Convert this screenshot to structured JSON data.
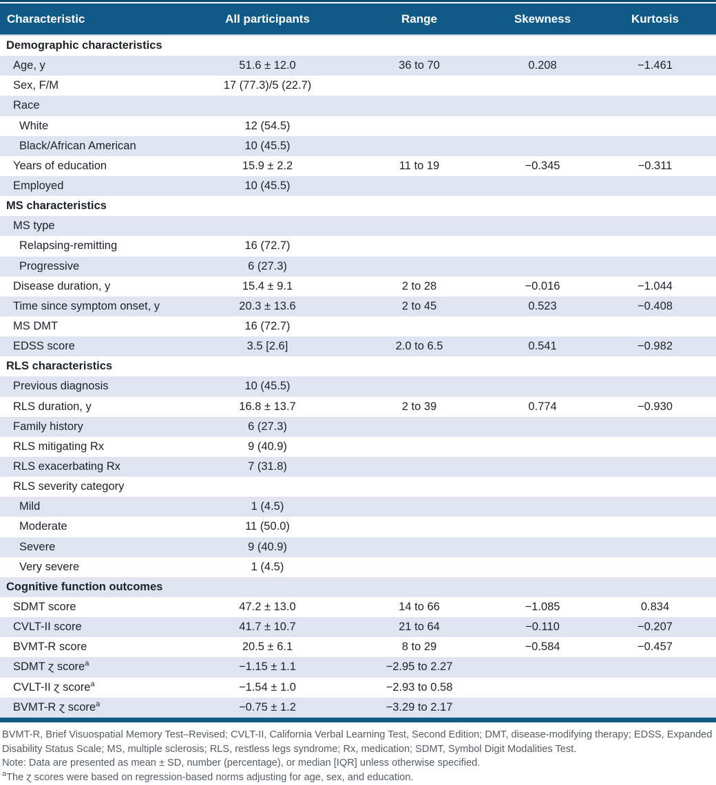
{
  "colors": {
    "header_bg": "#0f5a86",
    "top_rule": "#0c4c72",
    "stripe": "#dfe4f0",
    "body_text": "#1e2228",
    "footnote_text": "#555b61",
    "header_text": "#ffffff"
  },
  "table": {
    "columns": [
      "Characteristic",
      "All participants",
      "Range",
      "Skewness",
      "Kurtosis"
    ],
    "rows": [
      {
        "type": "section",
        "label": "Demographic characteristics"
      },
      {
        "type": "item",
        "label": "Age, y",
        "values": [
          "51.6 ± 12.0",
          "36 to 70",
          "0.208",
          "−1.461"
        ]
      },
      {
        "type": "item",
        "label": "Sex, F/M",
        "values": [
          "17 (77.3)/5 (22.7)",
          "",
          "",
          ""
        ]
      },
      {
        "type": "item",
        "label": "Race",
        "values": [
          "",
          "",
          "",
          ""
        ]
      },
      {
        "type": "subitem",
        "label": "White",
        "values": [
          "12 (54.5)",
          "",
          "",
          ""
        ]
      },
      {
        "type": "subitem",
        "label": "Black/African American",
        "values": [
          "10 (45.5)",
          "",
          "",
          ""
        ]
      },
      {
        "type": "item",
        "label": "Years of education",
        "values": [
          "15.9 ± 2.2",
          "11 to 19",
          "−0.345",
          "−0.311"
        ]
      },
      {
        "type": "item",
        "label": "Employed",
        "values": [
          "10 (45.5)",
          "",
          "",
          ""
        ]
      },
      {
        "type": "section",
        "label": "MS characteristics"
      },
      {
        "type": "item",
        "label": "MS type",
        "values": [
          "",
          "",
          "",
          ""
        ]
      },
      {
        "type": "subitem",
        "label": "Relapsing-remitting",
        "values": [
          "16 (72.7)",
          "",
          "",
          ""
        ]
      },
      {
        "type": "subitem",
        "label": "Progressive",
        "values": [
          "6 (27.3)",
          "",
          "",
          ""
        ]
      },
      {
        "type": "item",
        "label": "Disease duration, y",
        "values": [
          "15.4 ± 9.1",
          "2 to 28",
          "−0.016",
          "−1.044"
        ]
      },
      {
        "type": "item",
        "label": "Time since symptom onset, y",
        "values": [
          "20.3 ± 13.6",
          "2 to 45",
          "0.523",
          "−0.408"
        ]
      },
      {
        "type": "item",
        "label": "MS DMT",
        "values": [
          "16 (72.7)",
          "",
          "",
          ""
        ]
      },
      {
        "type": "item",
        "label": "EDSS score",
        "values": [
          "3.5 [2.6]",
          "2.0 to 6.5",
          "0.541",
          "−0.982"
        ]
      },
      {
        "type": "section",
        "label": "RLS characteristics"
      },
      {
        "type": "item",
        "label": "Previous diagnosis",
        "values": [
          "10 (45.5)",
          "",
          "",
          ""
        ]
      },
      {
        "type": "item",
        "label": "RLS duration, y",
        "values": [
          "16.8 ± 13.7",
          "2 to 39",
          "0.774",
          "−0.930"
        ]
      },
      {
        "type": "item",
        "label": "Family history",
        "values": [
          "6 (27.3)",
          "",
          "",
          ""
        ]
      },
      {
        "type": "item",
        "label": "RLS mitigating Rx",
        "values": [
          "9 (40.9)",
          "",
          "",
          ""
        ]
      },
      {
        "type": "item",
        "label": "RLS exacerbating Rx",
        "values": [
          "7 (31.8)",
          "",
          "",
          ""
        ]
      },
      {
        "type": "item",
        "label": "RLS severity category",
        "values": [
          "",
          "",
          "",
          ""
        ]
      },
      {
        "type": "subitem",
        "label": "Mild",
        "values": [
          "1 (4.5)",
          "",
          "",
          ""
        ]
      },
      {
        "type": "subitem",
        "label": "Moderate",
        "values": [
          "11 (50.0)",
          "",
          "",
          ""
        ]
      },
      {
        "type": "subitem",
        "label": "Severe",
        "values": [
          "9 (40.9)",
          "",
          "",
          ""
        ]
      },
      {
        "type": "subitem",
        "label": "Very severe",
        "values": [
          "1 (4.5)",
          "",
          "",
          ""
        ]
      },
      {
        "type": "section",
        "label": "Cognitive function outcomes"
      },
      {
        "type": "item",
        "label": "SDMT score",
        "values": [
          "47.2 ± 13.0",
          "14 to 66",
          "−1.085",
          "0.834"
        ]
      },
      {
        "type": "item",
        "label": "CVLT-II score",
        "values": [
          "41.7 ± 10.7",
          "21 to 64",
          "−0.110",
          "−0.207"
        ]
      },
      {
        "type": "item",
        "label": "BVMT-R score",
        "values": [
          "20.5 ± 6.1",
          "8 to 29",
          "−0.584",
          "−0.457"
        ]
      },
      {
        "type": "item",
        "label": "SDMT ɀ score",
        "sup": "a",
        "values": [
          "−1.15 ± 1.1",
          "−2.95 to 2.27",
          "",
          ""
        ]
      },
      {
        "type": "item",
        "label": "CVLT-II ɀ score",
        "sup": "a",
        "values": [
          "−1.54 ± 1.0",
          "−2.93 to 0.58",
          "",
          ""
        ]
      },
      {
        "type": "item",
        "label": "BVMT-R ɀ score",
        "sup": "a",
        "values": [
          "−0.75 ± 1.2",
          "−3.29 to 2.17",
          "",
          ""
        ]
      }
    ]
  },
  "footnotes": {
    "abbreviations": "BVMT-R, Brief Visuospatial Memory Test–Revised; CVLT-II, California Verbal Learning Test, Second Edition; DMT, disease-modifying therapy; EDSS, Expanded Disability Status Scale; MS, multiple sclerosis; RLS, restless legs syndrome; Rx, medication; SDMT, Symbol Digit Modalities Test.",
    "note": "Note: Data are presented as mean ± SD, number (percentage), or median [IQR] unless otherwise specified.",
    "footnote_a_marker": "a",
    "footnote_a": "The ɀ scores were based on regression-based norms adjusting for age, sex, and education."
  }
}
